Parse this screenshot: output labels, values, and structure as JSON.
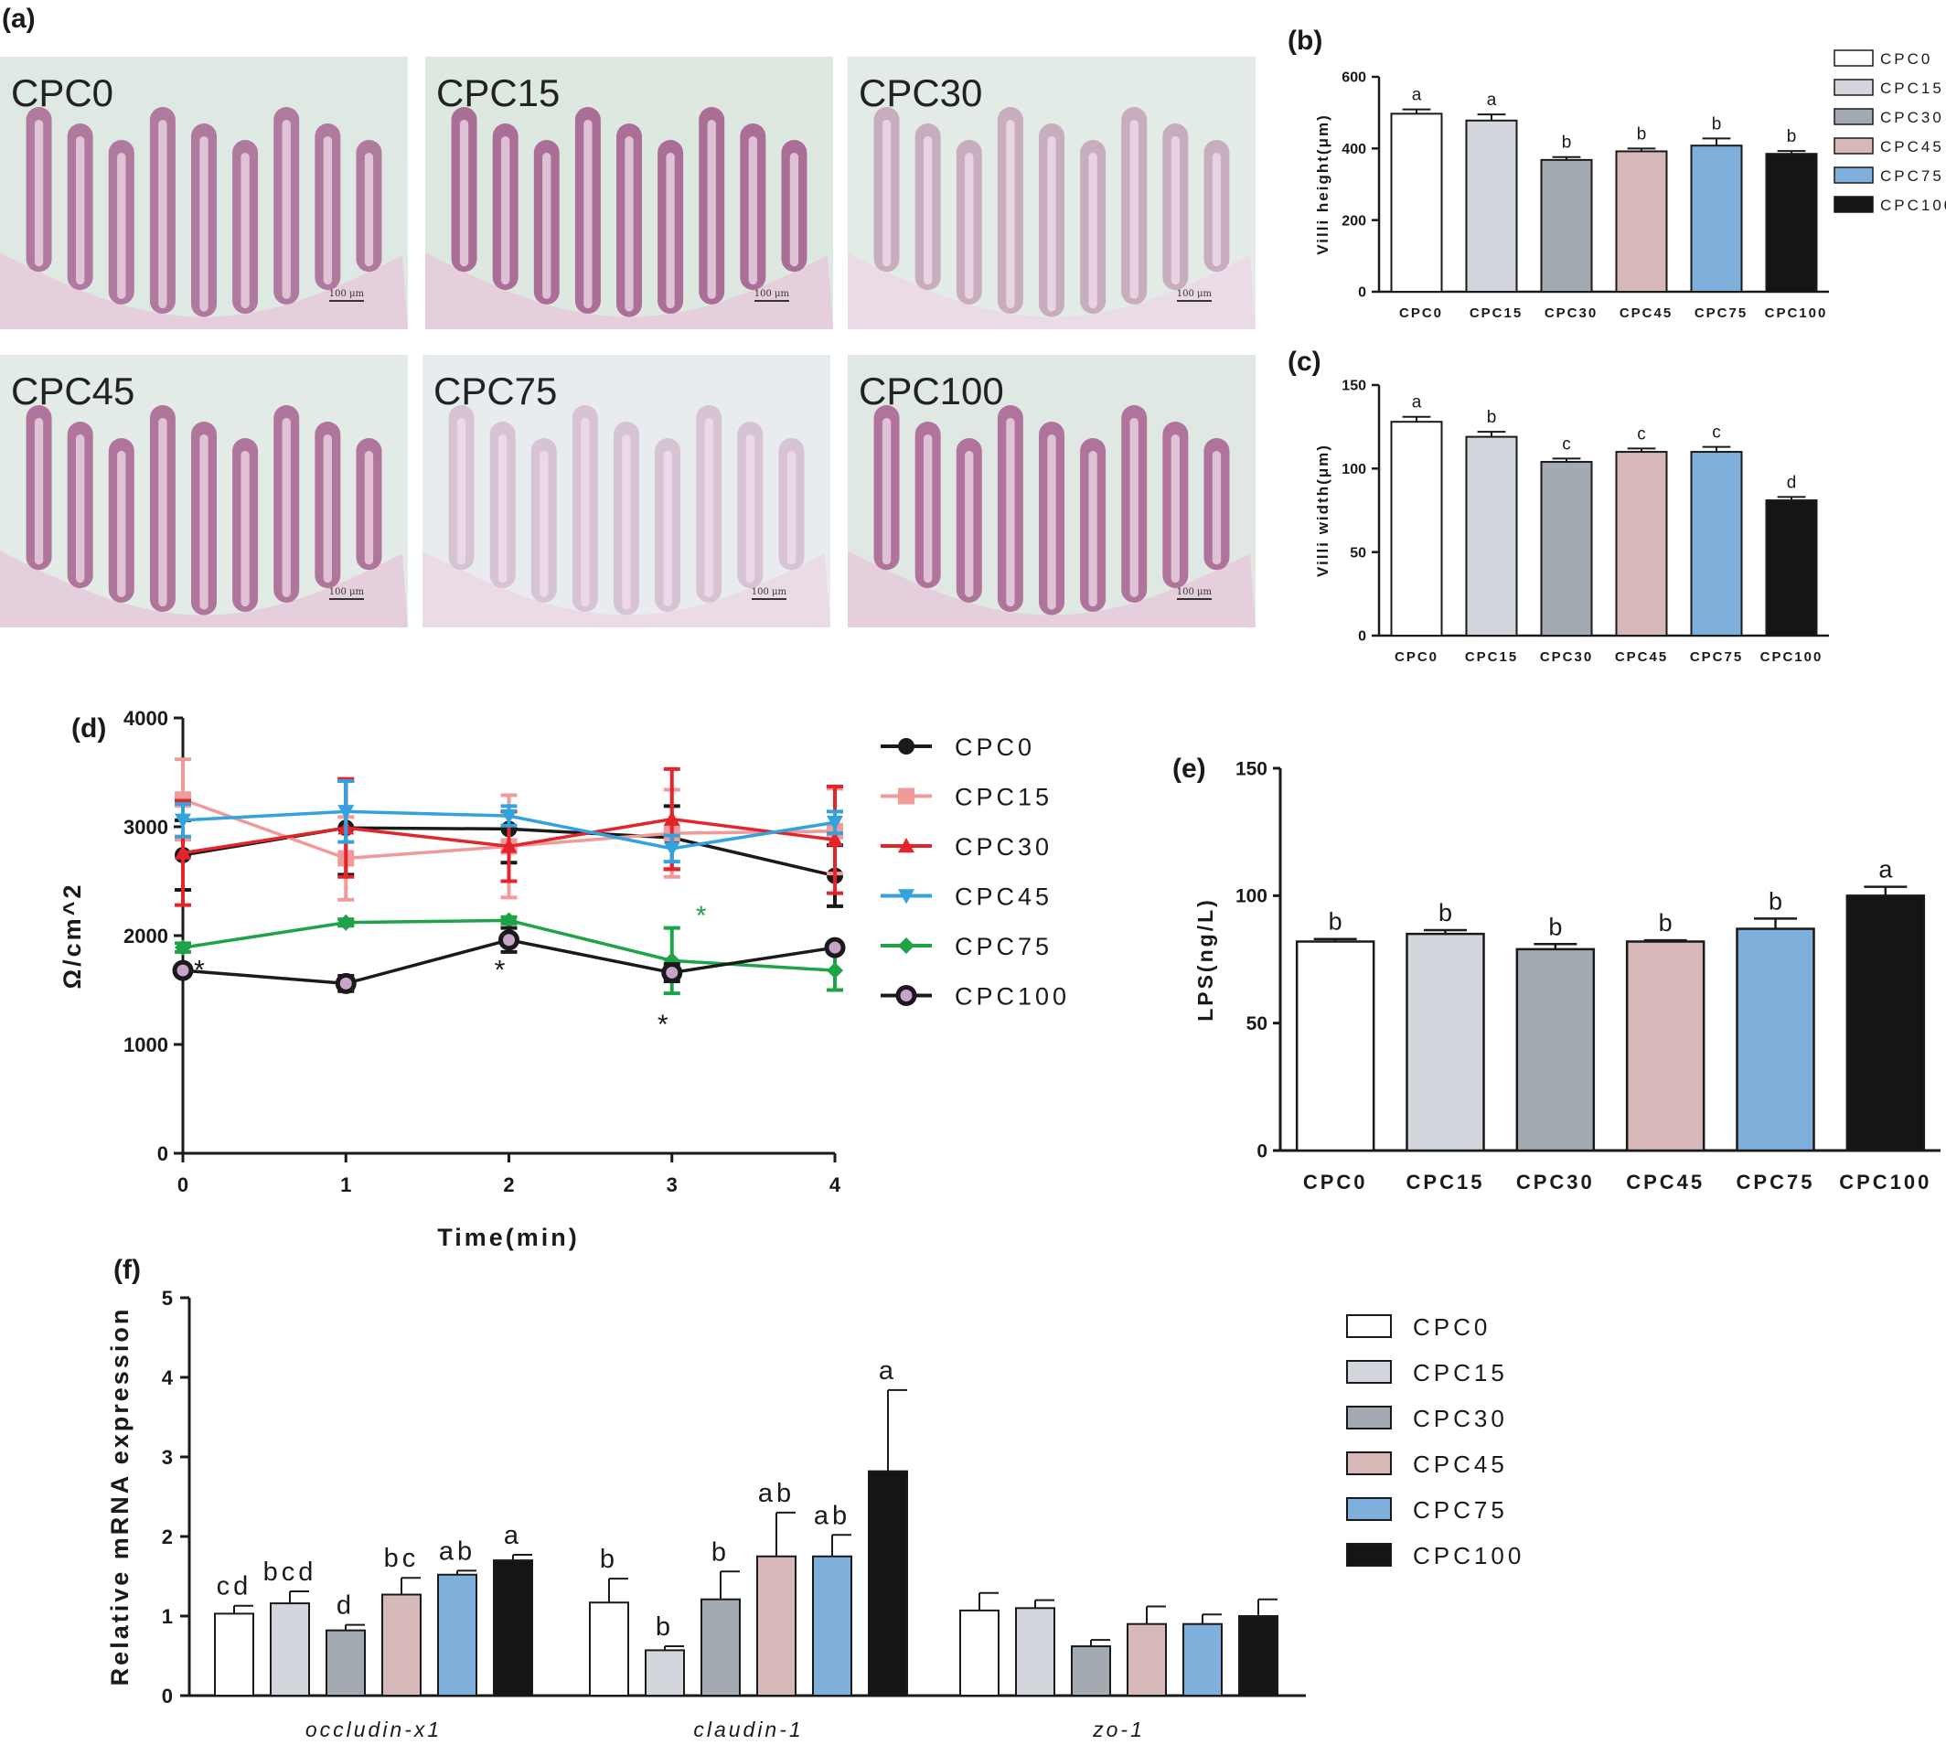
{
  "colors": {
    "CPC0": "#ffffff",
    "CPC15": "#d3d7dd",
    "CPC30": "#a3aab2",
    "CPC45": "#d7b8b8",
    "CPC75": "#7fb0dc",
    "CPC100": "#151515",
    "line_CPC0": "#1a1a1a",
    "line_CPC15": "#f19a9a",
    "line_CPC30": "#e3252b",
    "line_CPC45": "#33a2dd",
    "line_CPC75": "#1fa348",
    "line_CPC100": "#1a1a1a",
    "star_green": "#1fa348"
  },
  "panels": {
    "a": "(a)",
    "b": "(b)",
    "c": "(c)",
    "d": "(d)",
    "e": "(e)",
    "f": "(f)"
  },
  "histology": {
    "images": [
      {
        "label": "CPC0",
        "scale": "100 μm"
      },
      {
        "label": "CPC15",
        "scale": "100 μm"
      },
      {
        "label": "CPC30",
        "scale": "100 μm"
      },
      {
        "label": "CPC45",
        "scale": "100 μm"
      },
      {
        "label": "CPC75",
        "scale": "100 μm"
      },
      {
        "label": "CPC100",
        "scale": "100 μm"
      }
    ]
  },
  "chart_data": [
    {
      "id": "b",
      "type": "bar",
      "categories": [
        "CPC0",
        "CPC15",
        "CPC30",
        "CPC45",
        "CPC75",
        "CPC100"
      ],
      "values": [
        497,
        478,
        368,
        392,
        408,
        385
      ],
      "errors": [
        12,
        17,
        8,
        8,
        20,
        8
      ],
      "letters": [
        "a",
        "a",
        "b",
        "b",
        "b",
        "b"
      ],
      "ylabel": "Villi height(μm)",
      "ylim": [
        0,
        600
      ],
      "yticks": [
        "0",
        "200",
        "400",
        "600"
      ],
      "legend": [
        "CPC0",
        "CPC15",
        "CPC30",
        "CPC45",
        "CPC75",
        "CPC100"
      ]
    },
    {
      "id": "c",
      "type": "bar",
      "categories": [
        "CPC0",
        "CPC15",
        "CPC30",
        "CPC45",
        "CPC75",
        "CPC100"
      ],
      "values": [
        128,
        119,
        104,
        110,
        110,
        81
      ],
      "errors": [
        3,
        3,
        2,
        2,
        3,
        2
      ],
      "letters": [
        "a",
        "b",
        "c",
        "c",
        "c",
        "d"
      ],
      "ylabel": "Villi width(μm)",
      "ylim": [
        0,
        150
      ],
      "yticks": [
        "0",
        "50",
        "100",
        "150"
      ]
    },
    {
      "id": "d",
      "type": "line",
      "x": [
        0,
        1,
        2,
        3,
        4
      ],
      "xticks": [
        "0",
        "1",
        "2",
        "3",
        "4"
      ],
      "xlabel": "Time(min)",
      "ylabel": "Ω/cm^2",
      "ylim": [
        0,
        4000
      ],
      "yticks": [
        "0",
        "1000",
        "2000",
        "3000",
        "4000"
      ],
      "series": [
        {
          "name": "CPC0",
          "values": [
            2740,
            2990,
            2980,
            2900,
            2550
          ],
          "errors": [
            320,
            430,
            310,
            290,
            280
          ]
        },
        {
          "name": "CPC15",
          "values": [
            3250,
            2710,
            2820,
            2940,
            2960
          ],
          "errors": [
            370,
            380,
            470,
            400,
            390
          ]
        },
        {
          "name": "CPC30",
          "values": [
            2760,
            2990,
            2820,
            3070,
            2880
          ],
          "errors": [
            480,
            450,
            320,
            460,
            490
          ]
        },
        {
          "name": "CPC45",
          "values": [
            3060,
            3140,
            3100,
            2800,
            3040
          ],
          "errors": [
            150,
            280,
            90,
            120,
            100
          ]
        },
        {
          "name": "CPC75",
          "values": [
            1890,
            2120,
            2140,
            1770,
            1680
          ],
          "errors": [
            40,
            30,
            30,
            300,
            180
          ]
        },
        {
          "name": "CPC100",
          "values": [
            1680,
            1560,
            1960,
            1660,
            1890
          ],
          "errors": [
            40,
            70,
            110,
            80,
            40
          ]
        }
      ],
      "annotations": [
        {
          "x": 0,
          "text": "*",
          "color": "black"
        },
        {
          "x": 2,
          "text": "*",
          "color": "black"
        },
        {
          "x": 3,
          "text": "*",
          "color": "black"
        },
        {
          "x": 3,
          "text": "*",
          "color": "green"
        }
      ],
      "legend": [
        "CPC0",
        "CPC15",
        "CPC30",
        "CPC45",
        "CPC75",
        "CPC100"
      ]
    },
    {
      "id": "e",
      "type": "bar",
      "categories": [
        "CPC0",
        "CPC15",
        "CPC30",
        "CPC45",
        "CPC75",
        "CPC100"
      ],
      "values": [
        82,
        85,
        79,
        82,
        87,
        100
      ],
      "errors": [
        1,
        1.5,
        2,
        0.5,
        4,
        3.5
      ],
      "letters": [
        "b",
        "b",
        "b",
        "b",
        "b",
        "a"
      ],
      "ylabel": "LPS(ng/L)",
      "ylim": [
        0,
        150
      ],
      "yticks": [
        "0",
        "50",
        "100",
        "150"
      ]
    },
    {
      "id": "f",
      "type": "bar",
      "categories": [
        "occludin-x1",
        "claudin-1",
        "zo-1"
      ],
      "ylabel": "Relative mRNA expression",
      "ylim": [
        0,
        5
      ],
      "yticks": [
        "0",
        "1",
        "2",
        "3",
        "4",
        "5"
      ],
      "series": [
        {
          "name": "CPC0",
          "values": [
            1.03,
            1.17,
            1.07
          ],
          "errors": [
            0.1,
            0.3,
            0.22
          ],
          "letters": [
            "cd",
            "b",
            ""
          ]
        },
        {
          "name": "CPC15",
          "values": [
            1.16,
            0.57,
            1.1
          ],
          "errors": [
            0.15,
            0.05,
            0.1
          ],
          "letters": [
            "bcd",
            "b",
            ""
          ]
        },
        {
          "name": "CPC30",
          "values": [
            0.82,
            1.21,
            0.62
          ],
          "errors": [
            0.07,
            0.35,
            0.08
          ],
          "letters": [
            "d",
            "b",
            ""
          ]
        },
        {
          "name": "CPC45",
          "values": [
            1.27,
            1.75,
            0.9
          ],
          "errors": [
            0.21,
            0.55,
            0.22
          ],
          "letters": [
            "bc",
            "ab",
            ""
          ]
        },
        {
          "name": "CPC75",
          "values": [
            1.52,
            1.75,
            0.9
          ],
          "errors": [
            0.05,
            0.27,
            0.12
          ],
          "letters": [
            "ab",
            "ab",
            ""
          ]
        },
        {
          "name": "CPC100",
          "values": [
            1.7,
            2.82,
            1.0
          ],
          "errors": [
            0.07,
            1.02,
            0.21
          ],
          "letters": [
            "a",
            "a",
            ""
          ]
        }
      ],
      "legend": [
        "CPC0",
        "CPC15",
        "CPC30",
        "CPC45",
        "CPC75",
        "CPC100"
      ]
    }
  ]
}
